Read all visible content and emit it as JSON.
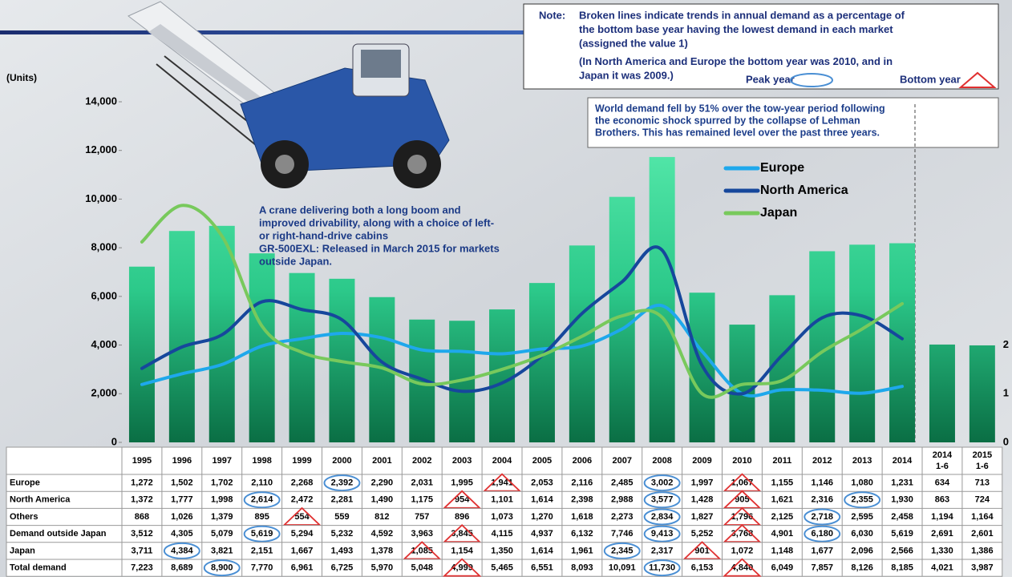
{
  "chart_data": {
    "type": "bar",
    "y_label": "(Units)",
    "categories": [
      "1995",
      "1996",
      "1997",
      "1998",
      "1999",
      "2000",
      "2001",
      "2002",
      "2003",
      "2004",
      "2005",
      "2006",
      "2007",
      "2008",
      "2009",
      "2010",
      "2011",
      "2012",
      "2013",
      "2014",
      "2014 1-6",
      "2015 1-6"
    ],
    "values": [
      7223,
      8689,
      8900,
      7770,
      6961,
      6725,
      5970,
      5048,
      4999,
      5465,
      6551,
      8093,
      10091,
      11730,
      6153,
      4840,
      6049,
      7857,
      8126,
      8185,
      4021,
      3987
    ],
    "color": "#2fd892",
    "ylim": [
      0,
      14000
    ],
    "yticks": [
      0,
      {
        "value": 2000,
        "label": "2,000"
      },
      {
        "value": 4000,
        "label": "4,000"
      },
      {
        "value": 6000,
        "label": "6,000"
      },
      {
        "value": 8000,
        "label": "8,000"
      },
      {
        "value": 10000,
        "label": "10,000"
      },
      {
        "value": 12000,
        "label": "12,000"
      },
      {
        "value": 14000,
        "label": "14,000"
      }
    ],
    "y2lim": [
      0,
      7
    ],
    "y2ticks": [
      0,
      1,
      2
    ],
    "legend": "top-right",
    "series": [
      {
        "name": "Europe",
        "color": "#1ea8ec",
        "type": "line",
        "axis": "y2",
        "values": [
          1.19,
          1.41,
          1.6,
          1.98,
          2.13,
          2.24,
          2.15,
          1.9,
          1.87,
          1.82,
          1.92,
          1.98,
          2.33,
          2.81,
          1.87,
          1.0,
          1.08,
          1.07,
          1.01,
          1.15,
          null,
          null
        ]
      },
      {
        "name": "North America",
        "color": "#16479c",
        "type": "line",
        "axis": "y2",
        "values": [
          1.52,
          1.96,
          2.21,
          2.89,
          2.73,
          2.52,
          1.65,
          1.3,
          1.05,
          1.22,
          1.78,
          2.65,
          3.3,
          3.95,
          1.58,
          1.0,
          1.79,
          2.56,
          2.6,
          2.13,
          null,
          null
        ]
      },
      {
        "name": "Japan",
        "color": "#78c95c",
        "type": "line",
        "axis": "y2",
        "values": [
          4.12,
          4.87,
          4.24,
          2.39,
          1.85,
          1.66,
          1.53,
          1.2,
          1.28,
          1.5,
          1.79,
          2.18,
          2.6,
          2.57,
          1.0,
          1.19,
          1.27,
          1.86,
          2.33,
          2.85,
          null,
          null
        ]
      }
    ]
  },
  "table": {
    "rows": [
      {
        "label": "Europe",
        "peaks": [
          "2000",
          "2008"
        ],
        "bottoms": [
          "2004",
          "2010"
        ],
        "cells": [
          "1,272",
          "1,502",
          "1,702",
          "2,110",
          "2,268",
          "2,392",
          "2,290",
          "2,031",
          "1,995",
          "1,941",
          "2,053",
          "2,116",
          "2,485",
          "3,002",
          "1,997",
          "1,067",
          "1,155",
          "1,146",
          "1,080",
          "1,231",
          "634",
          "713"
        ]
      },
      {
        "label": "North America",
        "peaks": [
          "1998",
          "2008",
          "2013"
        ],
        "bottoms": [
          "2003",
          "2010"
        ],
        "cells": [
          "1,372",
          "1,777",
          "1,998",
          "2,614",
          "2,472",
          "2,281",
          "1,490",
          "1,175",
          "954",
          "1,101",
          "1,614",
          "2,398",
          "2,988",
          "3,577",
          "1,428",
          "905",
          "1,621",
          "2,316",
          "2,355",
          "1,930",
          "863",
          "724"
        ]
      },
      {
        "label": "Others",
        "peaks": [
          "2008",
          "2012"
        ],
        "bottoms": [
          "1999",
          "2010"
        ],
        "cells": [
          "868",
          "1,026",
          "1,379",
          "895",
          "554",
          "559",
          "812",
          "757",
          "896",
          "1,073",
          "1,270",
          "1,618",
          "2,273",
          "2,834",
          "1,827",
          "1,796",
          "2,125",
          "2,718",
          "2,595",
          "2,458",
          "1,194",
          "1,164"
        ]
      },
      {
        "label": "Demand outside Japan",
        "peaks": [
          "1998",
          "2008",
          "2012"
        ],
        "bottoms": [
          "2003",
          "2010"
        ],
        "cells": [
          "3,512",
          "4,305",
          "5,079",
          "5,619",
          "5,294",
          "5,232",
          "4,592",
          "3,963",
          "3,845",
          "4,115",
          "4,937",
          "6,132",
          "7,746",
          "9,413",
          "5,252",
          "3,768",
          "4,901",
          "6,180",
          "6,030",
          "5,619",
          "2,691",
          "2,601"
        ]
      },
      {
        "label": "Japan",
        "peaks": [
          "1996",
          "2007"
        ],
        "bottoms": [
          "2002",
          "2009"
        ],
        "cells": [
          "3,711",
          "4,384",
          "3,821",
          "2,151",
          "1,667",
          "1,493",
          "1,378",
          "1,085",
          "1,154",
          "1,350",
          "1,614",
          "1,961",
          "2,345",
          "2,317",
          "901",
          "1,072",
          "1,148",
          "1,677",
          "2,096",
          "2,566",
          "1,330",
          "1,386"
        ]
      },
      {
        "label": "Total demand",
        "peaks": [
          "1997",
          "2008"
        ],
        "bottoms": [
          "2003",
          "2010"
        ],
        "cells": [
          "7,223",
          "8,689",
          "8,900",
          "7,770",
          "6,961",
          "6,725",
          "5,970",
          "5,048",
          "4,999",
          "5,465",
          "6,551",
          "8,093",
          "10,091",
          "11,730",
          "6,153",
          "4,840",
          "6,049",
          "7,857",
          "8,126",
          "8,185",
          "4,021",
          "3,987"
        ]
      }
    ]
  },
  "note": {
    "label": "Note:",
    "lines": [
      "Broken lines indicate trends in annual demand as a percentage of",
      "the bottom base year having the lowest demand in each market",
      "(assigned the value 1)",
      "(In North America and Europe the bottom year was 2010, and in",
      "Japan it was 2009.)"
    ],
    "peak_label": "Peak year",
    "bottom_label": "Bottom year"
  },
  "world_note": {
    "lines": [
      "World demand fell by 51% over the tow-year period following",
      "the economic shock spurred by the collapse of Lehman",
      "Brothers. This has remained level over the past three years."
    ]
  },
  "caption": {
    "lines": [
      "A crane delivering both a long boom and",
      "improved drivability, along with a choice of left-",
      "or right-hand-drive cabins",
      "GR-500EXL: Released in March 2015 for markets",
      "outside Japan."
    ]
  }
}
